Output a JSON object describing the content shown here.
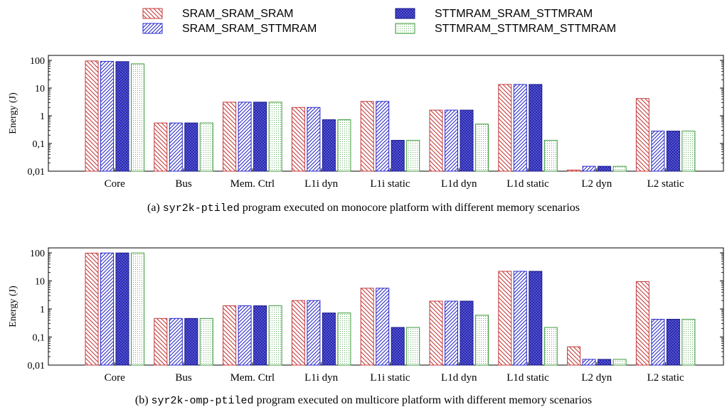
{
  "legend": {
    "placement": "top",
    "entries": [
      {
        "name": "SRAM_SRAM_SRAM",
        "pattern": "hatch-backslash",
        "color": "#c43a3a",
        "fill": "#ffffff"
      },
      {
        "name": "SRAM_SRAM_STTMRAM",
        "pattern": "hatch-slash",
        "color": "#2a2acc",
        "fill": "#ffffff"
      },
      {
        "name": "STTMRAM_SRAM_STTMRAM",
        "pattern": "crosshatch",
        "color": "#1a1a8a",
        "fill": "#5a5ae6"
      },
      {
        "name": "STTMRAM_STTMRAM_STTMRAM",
        "pattern": "dots",
        "color": "#3a9a3a",
        "fill": "#ffffff"
      }
    ]
  },
  "chart_data": [
    {
      "type": "bar",
      "ylabel": "Energy (J)",
      "yscale": "log",
      "ylim": [
        0.01,
        100
      ],
      "yticks": [
        "0,01",
        "0,1",
        "1",
        "10",
        "100"
      ],
      "grid": false,
      "categories": [
        "Core",
        "Bus",
        "Mem. Ctrl",
        "L1i dyn",
        "L1i static",
        "L1d dyn",
        "L1d static",
        "L2 dyn",
        "L2 static"
      ],
      "series": [
        {
          "name": "SRAM_SRAM_SRAM",
          "values": [
            95,
            0.55,
            3.1,
            2.0,
            3.3,
            1.6,
            13.5,
            0.011,
            4.2
          ]
        },
        {
          "name": "SRAM_SRAM_STTMRAM",
          "values": [
            92,
            0.55,
            3.1,
            2.0,
            3.3,
            1.6,
            13.5,
            0.015,
            0.28
          ]
        },
        {
          "name": "STTMRAM_SRAM_STTMRAM",
          "values": [
            90,
            0.55,
            3.1,
            0.72,
            0.13,
            1.6,
            13.5,
            0.015,
            0.28
          ]
        },
        {
          "name": "STTMRAM_STTMRAM_STTMRAM",
          "values": [
            75,
            0.55,
            3.1,
            0.72,
            0.13,
            0.5,
            0.13,
            0.015,
            0.28
          ]
        }
      ],
      "caption": {
        "prefix": "(a) ",
        "program": "syr2k-ptiled",
        "suffix": " program executed on monocore platform with different memory scenarios"
      }
    },
    {
      "type": "bar",
      "ylabel": "Energy (J)",
      "yscale": "log",
      "ylim": [
        0.01,
        100
      ],
      "yticks": [
        "0,01",
        "0,1",
        "1",
        "10",
        "100"
      ],
      "grid": false,
      "categories": [
        "Core",
        "Bus",
        "Mem. Ctrl",
        "L1i dyn",
        "L1i static",
        "L1d dyn",
        "L1d static",
        "L2 dyn",
        "L2 static"
      ],
      "series": [
        {
          "name": "SRAM_SRAM_SRAM",
          "values": [
            98,
            0.46,
            1.3,
            2.0,
            5.5,
            1.9,
            22,
            0.045,
            9.5
          ]
        },
        {
          "name": "SRAM_SRAM_STTMRAM",
          "values": [
            99,
            0.46,
            1.3,
            2.0,
            5.5,
            1.9,
            22,
            0.016,
            0.43
          ]
        },
        {
          "name": "STTMRAM_SRAM_STTMRAM",
          "values": [
            99,
            0.46,
            1.3,
            0.72,
            0.22,
            1.9,
            22,
            0.016,
            0.43
          ]
        },
        {
          "name": "STTMRAM_STTMRAM_STTMRAM",
          "values": [
            99,
            0.46,
            1.3,
            0.72,
            0.22,
            0.6,
            0.22,
            0.016,
            0.43
          ]
        }
      ],
      "caption": {
        "prefix": "(b) ",
        "program": "syr2k-omp-ptiled",
        "suffix": " program executed on multicore platform with different memory scenarios"
      }
    }
  ]
}
